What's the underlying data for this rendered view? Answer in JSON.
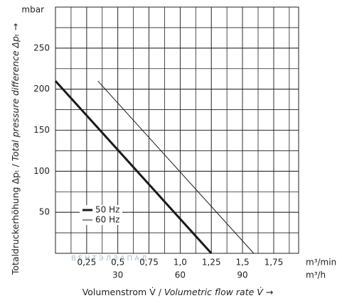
{
  "chart_data": {
    "type": "line",
    "y_unit": "mbar",
    "y_label": [
      "Totaldruckerhöhung Δpₜ / ",
      "Total pressure difference Δpₜ",
      " →"
    ],
    "x_label": [
      "Volumenstrom V̇ / ",
      "Volumetric flow rate V̇ →"
    ],
    "x_unit": "m³/min",
    "x2_unit": "m³/h",
    "watermark": "ВЕНТЭЛЗАПАД",
    "xlim": [
      0,
      1.95
    ],
    "ylim": [
      0,
      300
    ],
    "x2lim": [
      0,
      117
    ],
    "xticks": [
      {
        "value": 0.25,
        "label": "0,25"
      },
      {
        "value": 0.5,
        "label": "0,5"
      },
      {
        "value": 0.75,
        "label": "0,75"
      },
      {
        "value": 1.0,
        "label": "1,0"
      },
      {
        "value": 1.25,
        "label": "1,25"
      },
      {
        "value": 1.5,
        "label": "1,5"
      },
      {
        "value": 1.75,
        "label": "1,75"
      }
    ],
    "x2ticks": [
      30,
      60,
      90
    ],
    "yticks": [
      50,
      100,
      150,
      200,
      250
    ],
    "grid": true,
    "series": [
      {
        "name": "50 Hz",
        "color": "#1a1a1a",
        "width": 3,
        "x": [
          0,
          1.25
        ],
        "values": [
          210,
          0
        ]
      },
      {
        "name": "60 Hz",
        "color": "#1a1a1a",
        "width": 1,
        "x": [
          0.34,
          1.59
        ],
        "values": [
          210,
          0
        ]
      }
    ]
  }
}
